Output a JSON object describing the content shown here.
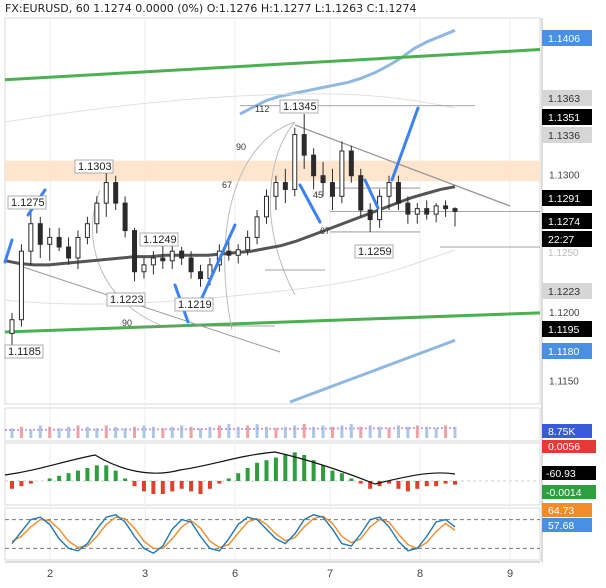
{
  "header": {
    "symbol": "FX:EURUSD, 60",
    "ohlc": "1.1274 0.0000 (0%) O:1.1276 H:1.1277 L:1.1263 C:1.1274"
  },
  "colors": {
    "up_candle": "#26a69a",
    "down_candle": "#ef5350",
    "trend_green": "#4caf50",
    "band_blue": "#90b8e0",
    "ma_dark": "#555555",
    "gray_lines": "#999999",
    "pivot_blue": "#3b82f6",
    "supply_zone": "#fde2c4",
    "osc_up": "#2e9e3e",
    "osc_down": "#e0402a",
    "stoch_k": "#1f77b4",
    "stoch_d": "#f28c28"
  },
  "chart_data": [
    {
      "type": "candlestick",
      "name": "price",
      "x_ticks": [
        "2",
        "3",
        "6",
        "7",
        "8",
        "9"
      ],
      "y_ticks": [
        "1.1150",
        "1.1200",
        "1.1300"
      ],
      "ylim": [
        1.1135,
        1.1415
      ],
      "candles": [
        [
          1.1185,
          1.12,
          1.1175,
          1.1195
        ],
        [
          1.1195,
          1.125,
          1.119,
          1.1245
        ],
        [
          1.1245,
          1.1275,
          1.1235,
          1.1265
        ],
        [
          1.1265,
          1.127,
          1.124,
          1.125
        ],
        [
          1.125,
          1.1262,
          1.1238,
          1.1255
        ],
        [
          1.1255,
          1.1262,
          1.1245,
          1.1248
        ],
        [
          1.1248,
          1.1255,
          1.1235,
          1.124
        ],
        [
          1.124,
          1.126,
          1.1232,
          1.1255
        ],
        [
          1.1255,
          1.127,
          1.125,
          1.1265
        ],
        [
          1.1265,
          1.1285,
          1.1258,
          1.128
        ],
        [
          1.128,
          1.1303,
          1.127,
          1.1295
        ],
        [
          1.1295,
          1.13,
          1.1275,
          1.128
        ],
        [
          1.128,
          1.1285,
          1.1255,
          1.126
        ],
        [
          1.126,
          1.1262,
          1.1223,
          1.123
        ],
        [
          1.123,
          1.124,
          1.1225,
          1.1235
        ],
        [
          1.1235,
          1.1245,
          1.1228,
          1.124
        ],
        [
          1.124,
          1.125,
          1.1232,
          1.1238
        ],
        [
          1.1238,
          1.1249,
          1.1232,
          1.1245
        ],
        [
          1.1245,
          1.1248,
          1.1235,
          1.124
        ],
        [
          1.124,
          1.1245,
          1.1225,
          1.123
        ],
        [
          1.123,
          1.1235,
          1.1219,
          1.1225
        ],
        [
          1.1225,
          1.124,
          1.122,
          1.1235
        ],
        [
          1.1235,
          1.125,
          1.123,
          1.1245
        ],
        [
          1.1245,
          1.1252,
          1.1238,
          1.1242
        ],
        [
          1.1242,
          1.125,
          1.1236,
          1.1246
        ],
        [
          1.1246,
          1.126,
          1.1242,
          1.1255
        ],
        [
          1.1255,
          1.1275,
          1.125,
          1.127
        ],
        [
          1.127,
          1.129,
          1.1265,
          1.1285
        ],
        [
          1.1285,
          1.13,
          1.1275,
          1.1295
        ],
        [
          1.1295,
          1.1305,
          1.128,
          1.129
        ],
        [
          1.129,
          1.1335,
          1.1285,
          1.133
        ],
        [
          1.133,
          1.1345,
          1.1305,
          1.1315
        ],
        [
          1.1315,
          1.132,
          1.129,
          1.13
        ],
        [
          1.13,
          1.131,
          1.1285,
          1.1295
        ],
        [
          1.1295,
          1.1305,
          1.1275,
          1.1285
        ],
        [
          1.1285,
          1.1325,
          1.128,
          1.1318
        ],
        [
          1.1318,
          1.1322,
          1.1295,
          1.13
        ],
        [
          1.13,
          1.1305,
          1.127,
          1.1275
        ],
        [
          1.1275,
          1.128,
          1.1259,
          1.1268
        ],
        [
          1.1268,
          1.129,
          1.1262,
          1.1285
        ],
        [
          1.1285,
          1.13,
          1.1275,
          1.1295
        ],
        [
          1.1295,
          1.13,
          1.1275,
          1.128
        ],
        [
          1.128,
          1.1285,
          1.1265,
          1.1272
        ],
        [
          1.1272,
          1.128,
          1.1265,
          1.1276
        ],
        [
          1.1276,
          1.1282,
          1.1268,
          1.1272
        ],
        [
          1.1272,
          1.128,
          1.1266,
          1.1278
        ],
        [
          1.1278,
          1.1282,
          1.127,
          1.1276
        ],
        [
          1.1276,
          1.1277,
          1.1263,
          1.1274
        ]
      ],
      "ma": [
        1.1238,
        1.1236,
        1.1235,
        1.1235,
        1.1236,
        1.1237,
        1.1238,
        1.1239,
        1.124,
        1.1241,
        1.1241,
        1.1242,
        1.1242,
        1.1242,
        1.1242,
        1.1243,
        1.1244,
        1.1245,
        1.1247,
        1.1249,
        1.1252,
        1.1256,
        1.126,
        1.1264,
        1.1268,
        1.1272,
        1.1276,
        1.128,
        1.1284,
        1.1287,
        1.129,
        1.1292
      ],
      "upper_band": [
        1.1345,
        1.135,
        1.1355,
        1.1358,
        1.136,
        1.1362,
        1.1364,
        1.1366,
        1.1368,
        1.1371,
        1.1375,
        1.138,
        1.1386,
        1.1393,
        1.1398,
        1.1402,
        1.1406
      ],
      "lower_band": [
        1.1135,
        1.114,
        1.1145,
        1.115,
        1.1155,
        1.116,
        1.1165,
        1.117,
        1.1175,
        1.118
      ],
      "trendline_upper": [
        1.137,
        1.1392
      ],
      "trendline_lower": [
        1.1186,
        1.12
      ],
      "supply_zone": [
        1.1296,
        1.1311
      ],
      "annotations": {
        "pivot_labels": [
          "1.1275",
          "1.1303",
          "1.1249",
          "1.1223",
          "1.1219",
          "1.1345",
          "1.1259",
          "1.1185"
        ],
        "fib_labels": [
          "112",
          "90",
          "67",
          "45",
          "67",
          "90"
        ]
      },
      "price_tags": [
        {
          "label": "1.1406",
          "style": "blue"
        },
        {
          "label": "1.1363",
          "style": "lightgray"
        },
        {
          "label": "1.1351",
          "style": "black"
        },
        {
          "label": "1.1336",
          "style": "lightgray"
        },
        {
          "label": "1.1291",
          "style": "black"
        },
        {
          "label": "1.1274",
          "style": "black"
        },
        {
          "label": "22:27",
          "style": "black"
        },
        {
          "label": "1.1223",
          "style": "lightgray"
        },
        {
          "label": "1.1195",
          "style": "black"
        },
        {
          "label": "1.1180",
          "style": "blue"
        }
      ]
    },
    {
      "type": "bar",
      "name": "volume",
      "tag": "8.75K",
      "values": [
        7,
        8,
        6,
        9,
        8,
        7,
        8,
        9,
        8,
        7,
        9,
        8,
        7,
        8,
        9,
        8,
        7,
        8,
        9,
        8,
        7,
        8,
        9,
        10,
        8,
        9,
        10,
        8,
        7,
        8,
        9,
        10,
        8,
        9,
        8,
        9,
        10,
        8,
        9,
        8,
        7,
        9,
        8,
        9,
        8,
        7,
        9,
        8
      ]
    },
    {
      "type": "bar",
      "name": "oscillator",
      "tags": [
        "0.0056",
        "-60.93",
        "-0.0014"
      ],
      "values": [
        -0.003,
        -0.002,
        -0.001,
        0.0,
        0.001,
        0.002,
        0.003,
        0.004,
        0.005,
        0.006,
        0.006,
        0.004,
        0.001,
        -0.002,
        -0.004,
        -0.005,
        -0.005,
        -0.004,
        -0.003,
        -0.004,
        -0.005,
        -0.003,
        -0.001,
        0.001,
        0.003,
        0.005,
        0.007,
        0.008,
        0.009,
        0.01,
        0.011,
        0.01,
        0.008,
        0.006,
        0.004,
        0.003,
        0.001,
        -0.001,
        -0.003,
        -0.002,
        -0.001,
        -0.003,
        -0.004,
        -0.003,
        -0.002,
        -0.002,
        -0.001,
        -0.0014
      ]
    },
    {
      "type": "line",
      "name": "stochastic",
      "tags": [
        "64.73",
        "57.68"
      ],
      "k": [
        30,
        55,
        80,
        85,
        70,
        40,
        20,
        15,
        30,
        60,
        85,
        90,
        75,
        45,
        20,
        10,
        25,
        60,
        80,
        75,
        45,
        20,
        15,
        40,
        70,
        85,
        80,
        60,
        40,
        30,
        50,
        80,
        90,
        85,
        60,
        30,
        25,
        50,
        80,
        85,
        65,
        35,
        15,
        20,
        45,
        75,
        80,
        64.73
      ],
      "d": [
        35,
        45,
        65,
        80,
        78,
        60,
        35,
        22,
        25,
        45,
        70,
        85,
        82,
        62,
        35,
        20,
        20,
        40,
        65,
        78,
        62,
        35,
        22,
        28,
        52,
        75,
        82,
        70,
        50,
        36,
        42,
        65,
        82,
        87,
        72,
        45,
        32,
        40,
        65,
        80,
        75,
        50,
        28,
        20,
        32,
        55,
        72,
        57.68
      ]
    }
  ]
}
